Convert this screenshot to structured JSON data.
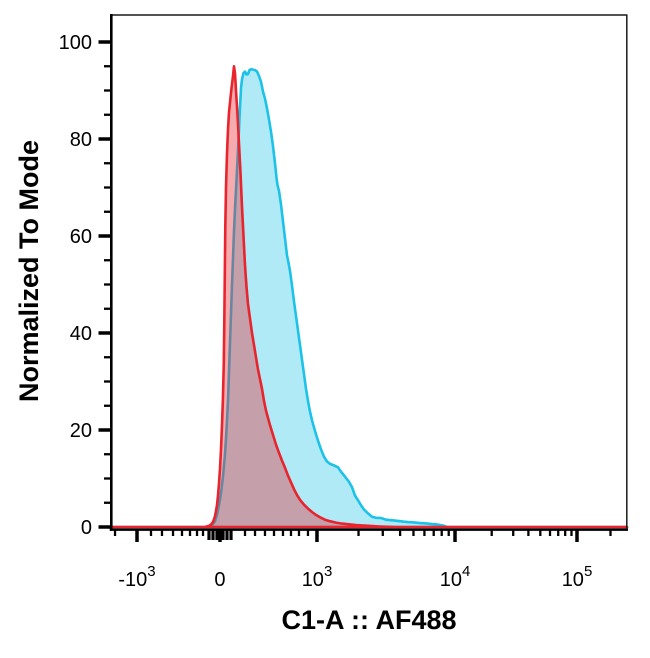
{
  "figure": {
    "background": "#ffffff",
    "plot_border_color": "#1a1a1a",
    "tick_color": "#000000"
  },
  "chart_data": {
    "type": "area",
    "subtype": "flow-cytometry-histogram-overlay",
    "title": "",
    "xlabel": "C1-A :: AF488",
    "ylabel": "Normalized To Mode",
    "x_scale": "biexponential",
    "grid": "off",
    "legend": "none",
    "ylim": [
      0,
      105.6
    ],
    "y_ticks": {
      "major": [
        0,
        20,
        40,
        60,
        80,
        100
      ],
      "minor": [
        5,
        10,
        15,
        25,
        30,
        35,
        45,
        50,
        55,
        65,
        70,
        75,
        85,
        90,
        95
      ]
    },
    "x_ticks": {
      "major": [
        {
          "base": "-10",
          "exp": "3",
          "frac": 0.0504
        },
        {
          "base": "0",
          "exp": "",
          "frac": 0.2112
        },
        {
          "base": "10",
          "exp": "3",
          "frac": 0.3992
        },
        {
          "base": "10",
          "exp": "4",
          "frac": 0.6667
        },
        {
          "base": "10",
          "exp": "5",
          "frac": 0.9031
        }
      ],
      "minor_frac": [
        0.0078,
        0.0775,
        0.0988,
        0.1202,
        0.1376,
        0.1531,
        0.1667,
        0.1783,
        0.2597,
        0.2791,
        0.2984,
        0.3159,
        0.3333,
        0.3488,
        0.3643,
        0.3817,
        0.4797,
        0.5267,
        0.5603,
        0.5862,
        0.6074,
        0.6254,
        0.6409,
        0.6545,
        0.7378,
        0.7795,
        0.8089,
        0.832,
        0.8508,
        0.8667,
        0.8802,
        0.8924,
        0.968
      ],
      "near_zero_cluster_frac": [
        0.1899,
        0.1977,
        0.2054,
        0.2171,
        0.2248,
        0.2326
      ]
    },
    "series": [
      {
        "id": "cyan-histogram",
        "stroke": "#1CC2E8",
        "fill": "rgba(28,194,232,0.35)",
        "points": [
          [
            0.188,
            0
          ],
          [
            0.1957,
            0.4
          ],
          [
            0.2016,
            1.2
          ],
          [
            0.2054,
            2.5
          ],
          [
            0.2093,
            4.5
          ],
          [
            0.2132,
            7
          ],
          [
            0.2171,
            10.5
          ],
          [
            0.2209,
            15
          ],
          [
            0.2238,
            20
          ],
          [
            0.2267,
            26
          ],
          [
            0.2287,
            32
          ],
          [
            0.2306,
            38
          ],
          [
            0.2326,
            44
          ],
          [
            0.2345,
            50
          ],
          [
            0.2364,
            55.5
          ],
          [
            0.2384,
            61
          ],
          [
            0.2403,
            65.5
          ],
          [
            0.2422,
            69.5
          ],
          [
            0.2442,
            73.5
          ],
          [
            0.2461,
            77.5
          ],
          [
            0.2481,
            82
          ],
          [
            0.25,
            86.5
          ],
          [
            0.2519,
            90.5
          ],
          [
            0.2539,
            92.3
          ],
          [
            0.2568,
            93.6
          ],
          [
            0.2597,
            93.9
          ],
          [
            0.2626,
            93.3
          ],
          [
            0.2655,
            93.4
          ],
          [
            0.2684,
            94.2
          ],
          [
            0.2713,
            94.4
          ],
          [
            0.2752,
            94.3
          ],
          [
            0.2791,
            94.2
          ],
          [
            0.2829,
            93.9
          ],
          [
            0.2868,
            93
          ],
          [
            0.2907,
            91.8
          ],
          [
            0.2946,
            89.8
          ],
          [
            0.2984,
            88.3
          ],
          [
            0.3023,
            86.3
          ],
          [
            0.3062,
            84
          ],
          [
            0.3101,
            81.5
          ],
          [
            0.314,
            78.5
          ],
          [
            0.3178,
            75
          ],
          [
            0.3207,
            72
          ],
          [
            0.3227,
            70.5
          ],
          [
            0.3256,
            69.3
          ],
          [
            0.3295,
            66.5
          ],
          [
            0.3333,
            63
          ],
          [
            0.3372,
            59.5
          ],
          [
            0.3411,
            56
          ],
          [
            0.344,
            54.5
          ],
          [
            0.3469,
            52.8
          ],
          [
            0.3508,
            49.8
          ],
          [
            0.3547,
            46.5
          ],
          [
            0.3585,
            43.5
          ],
          [
            0.3624,
            40.5
          ],
          [
            0.3663,
            37.5
          ],
          [
            0.3702,
            34.5
          ],
          [
            0.374,
            31.5
          ],
          [
            0.3779,
            28.5
          ],
          [
            0.3818,
            26
          ],
          [
            0.3857,
            23.8
          ],
          [
            0.3895,
            22
          ],
          [
            0.3953,
            19.8
          ],
          [
            0.4012,
            17.8
          ],
          [
            0.407,
            16
          ],
          [
            0.4128,
            14.5
          ],
          [
            0.4186,
            13.5
          ],
          [
            0.4244,
            13
          ],
          [
            0.4322,
            12.7
          ],
          [
            0.4399,
            12.3
          ],
          [
            0.4457,
            11.4
          ],
          [
            0.4535,
            10.4
          ],
          [
            0.4612,
            9.3
          ],
          [
            0.4671,
            8.2
          ],
          [
            0.4729,
            6.5
          ],
          [
            0.4787,
            5.5
          ],
          [
            0.4845,
            4.5
          ],
          [
            0.4903,
            3.6
          ],
          [
            0.4981,
            2.8
          ],
          [
            0.5058,
            2.1
          ],
          [
            0.5136,
            1.9
          ],
          [
            0.5233,
            1.85
          ],
          [
            0.5329,
            1.5
          ],
          [
            0.5426,
            1.4
          ],
          [
            0.5523,
            1.3
          ],
          [
            0.5601,
            1.2
          ],
          [
            0.5678,
            1.1
          ],
          [
            0.5756,
            1.0
          ],
          [
            0.5872,
            0.95
          ],
          [
            0.5988,
            0.8
          ],
          [
            0.6105,
            0.75
          ],
          [
            0.6221,
            0.6
          ],
          [
            0.6337,
            0.5
          ],
          [
            0.6434,
            0.3
          ],
          [
            0.6512,
            0
          ]
        ]
      },
      {
        "id": "red-histogram",
        "stroke": "#E8242C",
        "fill": "rgba(232,36,44,0.38)",
        "points": [
          [
            0.1822,
            0
          ],
          [
            0.1919,
            0.3
          ],
          [
            0.1977,
            1
          ],
          [
            0.2016,
            2.2
          ],
          [
            0.2054,
            4.5
          ],
          [
            0.2074,
            6.5
          ],
          [
            0.2093,
            9
          ],
          [
            0.2112,
            12
          ],
          [
            0.2132,
            16
          ],
          [
            0.2151,
            21
          ],
          [
            0.2171,
            27
          ],
          [
            0.2186,
            34
          ],
          [
            0.2196,
            42
          ],
          [
            0.2205,
            52
          ],
          [
            0.2215,
            62
          ],
          [
            0.2229,
            70
          ],
          [
            0.2248,
            77
          ],
          [
            0.2267,
            82
          ],
          [
            0.2287,
            85.5
          ],
          [
            0.2306,
            87.5
          ],
          [
            0.2335,
            90.5
          ],
          [
            0.2364,
            93
          ],
          [
            0.2384,
            95
          ],
          [
            0.2403,
            93.5
          ],
          [
            0.2422,
            90
          ],
          [
            0.2451,
            85
          ],
          [
            0.2481,
            79
          ],
          [
            0.251,
            73
          ],
          [
            0.2539,
            66
          ],
          [
            0.2568,
            60
          ],
          [
            0.2597,
            54
          ],
          [
            0.2626,
            49.5
          ],
          [
            0.2655,
            46
          ],
          [
            0.2694,
            43
          ],
          [
            0.2733,
            40
          ],
          [
            0.2771,
            37.5
          ],
          [
            0.281,
            35
          ],
          [
            0.2849,
            32.5
          ],
          [
            0.2888,
            30.5
          ],
          [
            0.2926,
            28.5
          ],
          [
            0.2965,
            26
          ],
          [
            0.3004,
            24
          ],
          [
            0.3043,
            22.5
          ],
          [
            0.3081,
            21
          ],
          [
            0.314,
            19
          ],
          [
            0.3198,
            17
          ],
          [
            0.3256,
            15.3
          ],
          [
            0.3314,
            13.7
          ],
          [
            0.3372,
            12.2
          ],
          [
            0.343,
            10.6
          ],
          [
            0.3488,
            9.2
          ],
          [
            0.3547,
            7.8
          ],
          [
            0.3605,
            6.6
          ],
          [
            0.3663,
            5.6
          ],
          [
            0.374,
            4.6
          ],
          [
            0.3818,
            3.8
          ],
          [
            0.3895,
            3.1
          ],
          [
            0.3973,
            2.5
          ],
          [
            0.405,
            2
          ],
          [
            0.4147,
            1.5
          ],
          [
            0.4244,
            1.2
          ],
          [
            0.436,
            0.9
          ],
          [
            0.4477,
            0.7
          ],
          [
            0.4612,
            0.55
          ],
          [
            0.4748,
            0.4
          ],
          [
            0.4903,
            0.3
          ],
          [
            0.5058,
            0.2
          ],
          [
            0.5213,
            0.1
          ],
          [
            0.5368,
            0.05
          ],
          [
            0.5504,
            0
          ]
        ]
      }
    ]
  }
}
